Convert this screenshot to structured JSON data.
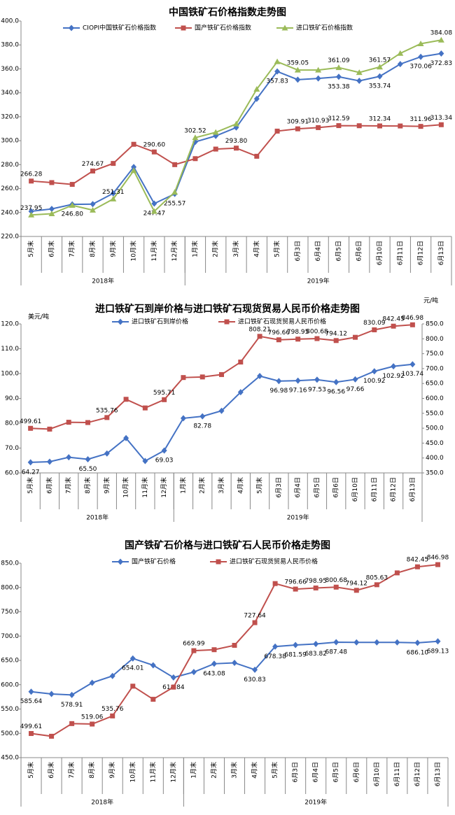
{
  "chart_data": [
    {
      "type": "line",
      "title": "中国铁矿石价格指数走势图",
      "categories": [
        "5月末",
        "6月末",
        "7月末",
        "8月末",
        "9月末",
        "10月末",
        "11月末",
        "12月末",
        "1月末",
        "2月末",
        "3月末",
        "4月末",
        "5月末",
        "6月3日",
        "6月4日",
        "6月5日",
        "6月6日",
        "6月10日",
        "6月11日",
        "6月12日",
        "6月13日"
      ],
      "groups": [
        {
          "label": "2018年",
          "size": 8
        },
        {
          "label": "2019年",
          "size": 13
        }
      ],
      "ylim": [
        220,
        400
      ],
      "yticks": [
        {
          "value": 220,
          "label": "220.0"
        },
        {
          "value": 240,
          "label": "240.0"
        },
        {
          "value": 260,
          "label": "260.0"
        },
        {
          "value": 280,
          "label": "280.0"
        },
        {
          "value": 300,
          "label": "300.0"
        },
        {
          "value": 320,
          "label": "320.0"
        },
        {
          "value": 340,
          "label": "340.0"
        },
        {
          "value": 360,
          "label": "360.0"
        },
        {
          "value": 380,
          "label": "380.0"
        },
        {
          "value": 400,
          "label": "400.0"
        }
      ],
      "series": [
        {
          "name": "CIOPI中国铁矿石价格指数",
          "color": "#4472c4",
          "marker": "diamond",
          "values": [
            241,
            243,
            246.8,
            247,
            256,
            278,
            247.47,
            255.57,
            299,
            304,
            311,
            335,
            357.83,
            351,
            352,
            353.38,
            350,
            353.74,
            364,
            370.06,
            372.83
          ],
          "value_labels": [
            null,
            null,
            "246.80",
            null,
            null,
            null,
            "247.47",
            "255.57",
            null,
            null,
            null,
            null,
            "357.83",
            null,
            null,
            "353.38",
            null,
            "353.74",
            null,
            "370.06",
            "372.83"
          ]
        },
        {
          "name": "国产铁矿石价格指数",
          "color": "#c0504d",
          "marker": "square",
          "values": [
            266.28,
            265,
            263.5,
            274.67,
            281,
            297,
            290.6,
            280,
            285,
            293,
            293.8,
            287,
            308,
            309.91,
            310.93,
            312.59,
            312.5,
            312.34,
            312.3,
            311.96,
            313.34
          ],
          "value_labels": [
            "266.28",
            null,
            null,
            "274.67",
            null,
            null,
            "290.60",
            null,
            null,
            null,
            "293.80",
            null,
            null,
            "309.91",
            "310.93",
            "312.59",
            null,
            "312.34",
            null,
            "311.96",
            "313.34"
          ]
        },
        {
          "name": "进口铁矿石价格指数",
          "color": "#9bbb59",
          "marker": "triangle",
          "values": [
            237.95,
            239,
            246,
            242,
            251.31,
            275,
            241,
            257,
            302.52,
            307,
            314,
            343,
            366,
            359.05,
            359,
            361.09,
            357,
            361.57,
            373,
            381,
            384.08
          ],
          "value_labels": [
            "237.95",
            null,
            null,
            null,
            "251.31",
            null,
            null,
            null,
            "302.52",
            null,
            null,
            null,
            null,
            "359.05",
            null,
            "361.09",
            null,
            "361.57",
            null,
            null,
            "384.08"
          ]
        }
      ]
    },
    {
      "type": "line",
      "title": "进口铁矿石到岸价格与进口铁矿石现货贸易人民币价格走势图",
      "y_label": "美元/吨",
      "y2_label": "元/吨",
      "categories": [
        "5月末",
        "6月末",
        "7月末",
        "8月末",
        "9月末",
        "10月末",
        "11月末",
        "12月末",
        "1月末",
        "2月末",
        "3月末",
        "4月末",
        "5月末",
        "6月3日",
        "6月4日",
        "6月5日",
        "6月6日",
        "6月10日",
        "6月11日",
        "6月12日",
        "6月13日"
      ],
      "groups": [
        {
          "label": "2018年",
          "size": 8
        },
        {
          "label": "2019年",
          "size": 13
        }
      ],
      "ylim": [
        60,
        120
      ],
      "yticks": [
        {
          "value": 60,
          "label": "60.0"
        },
        {
          "value": 70,
          "label": "70.0"
        },
        {
          "value": 80,
          "label": "80.0"
        },
        {
          "value": 90,
          "label": "90.0"
        },
        {
          "value": 100,
          "label": "100.0"
        },
        {
          "value": 110,
          "label": "110.0"
        },
        {
          "value": 120,
          "label": "120.0"
        }
      ],
      "y2lim": [
        350,
        850
      ],
      "y2ticks": [
        {
          "value": 350,
          "label": "350.0"
        },
        {
          "value": 400,
          "label": "400.0"
        },
        {
          "value": 450,
          "label": "450.0"
        },
        {
          "value": 500,
          "label": "500.0"
        },
        {
          "value": 550,
          "label": "550.0"
        },
        {
          "value": 600,
          "label": "600.0"
        },
        {
          "value": 650,
          "label": "650.0"
        },
        {
          "value": 700,
          "label": "700.0"
        },
        {
          "value": 750,
          "label": "750.0"
        },
        {
          "value": 800,
          "label": "800.0"
        },
        {
          "value": 850,
          "label": "850.0"
        }
      ],
      "series": [
        {
          "name": "进口铁矿石到岸价格",
          "color": "#4472c4",
          "marker": "diamond",
          "values": [
            64.27,
            64.5,
            66.3,
            65.5,
            67.8,
            74,
            64.8,
            69.03,
            82,
            82.78,
            85,
            92.5,
            99,
            96.98,
            97.16,
            97.53,
            96.56,
            97.66,
            100.92,
            102.92,
            103.74
          ],
          "value_labels": [
            "64.27",
            null,
            null,
            "65.50",
            null,
            null,
            null,
            "69.03",
            null,
            "82.78",
            null,
            null,
            null,
            "96.98",
            "97.16",
            "97.53",
            "96.56",
            "97.66",
            "100.92",
            "102.92",
            "103.74"
          ]
        },
        {
          "name": "进口铁矿石现货贸易人民币价格",
          "color": "#c0504d",
          "marker": "square",
          "axis": "y2",
          "values": [
            499.61,
            497,
            520,
            519,
            535.76,
            597,
            568,
            595.71,
            670,
            672,
            680,
            722,
            808.21,
            796.66,
            798.95,
            800.68,
            794.12,
            805,
            830.09,
            842.45,
            846.98
          ],
          "value_labels": [
            "499.61",
            null,
            null,
            null,
            "535.76",
            null,
            null,
            "595.71",
            null,
            null,
            null,
            null,
            "808.21",
            "796.66",
            "798.95",
            "800.68",
            "794.12",
            null,
            "830.09",
            "842.45",
            "846.98"
          ]
        }
      ]
    },
    {
      "type": "line",
      "title": "国产铁矿石价格与进口铁矿石人民币价格走势图",
      "categories": [
        "5月末",
        "6月末",
        "7月末",
        "8月末",
        "9月末",
        "10月末",
        "11月末",
        "12月末",
        "1月末",
        "2月末",
        "3月末",
        "4月末",
        "5月末",
        "6月3日",
        "6月4日",
        "6月5日",
        "6月6日",
        "6月10日",
        "6月11日",
        "6月12日",
        "6月13日"
      ],
      "groups": [
        {
          "label": "2018年",
          "size": 8
        },
        {
          "label": "2019年",
          "size": 13
        }
      ],
      "ylim": [
        450,
        850
      ],
      "yticks": [
        {
          "value": 450,
          "label": "450.0"
        },
        {
          "value": 500,
          "label": "500.0"
        },
        {
          "value": 550,
          "label": "550.0"
        },
        {
          "value": 600,
          "label": "600.0"
        },
        {
          "value": 650,
          "label": "650.0"
        },
        {
          "value": 700,
          "label": "700.0"
        },
        {
          "value": 750,
          "label": "750.0"
        },
        {
          "value": 800,
          "label": "800.0"
        },
        {
          "value": 850,
          "label": "850.0"
        }
      ],
      "series": [
        {
          "name": "国产铁矿石价格",
          "color": "#4472c4",
          "marker": "diamond",
          "values": [
            585.64,
            581,
            578.91,
            604,
            618,
            654.01,
            640,
            614.84,
            626,
            643.08,
            645,
            630.83,
            678.38,
            681.59,
            683.82,
            687.48,
            687,
            687,
            687,
            686.1,
            689.13
          ],
          "value_labels": [
            "585.64",
            null,
            "578.91",
            null,
            null,
            "654.01",
            null,
            "614.84",
            null,
            "643.08",
            null,
            "630.83",
            "678.38",
            "681.59",
            "683.82",
            "687.48",
            null,
            null,
            null,
            "686.10",
            "689.13"
          ]
        },
        {
          "name": "进口铁矿石现货贸易人民币价格",
          "color": "#c0504d",
          "marker": "square",
          "values": [
            499.61,
            494,
            520,
            519.06,
            535.76,
            597,
            570,
            595,
            669.99,
            672,
            681,
            727.64,
            808,
            796.66,
            798.95,
            800.68,
            794.12,
            805.63,
            830,
            842.45,
            846.98
          ],
          "value_labels": [
            "499.61",
            null,
            null,
            "519.06",
            "535.76",
            null,
            null,
            null,
            "669.99",
            null,
            null,
            "727.64",
            null,
            "796.66",
            "798.95",
            "800.68",
            "794.12",
            "805.63",
            null,
            "842.45",
            "846.98"
          ]
        }
      ]
    }
  ]
}
